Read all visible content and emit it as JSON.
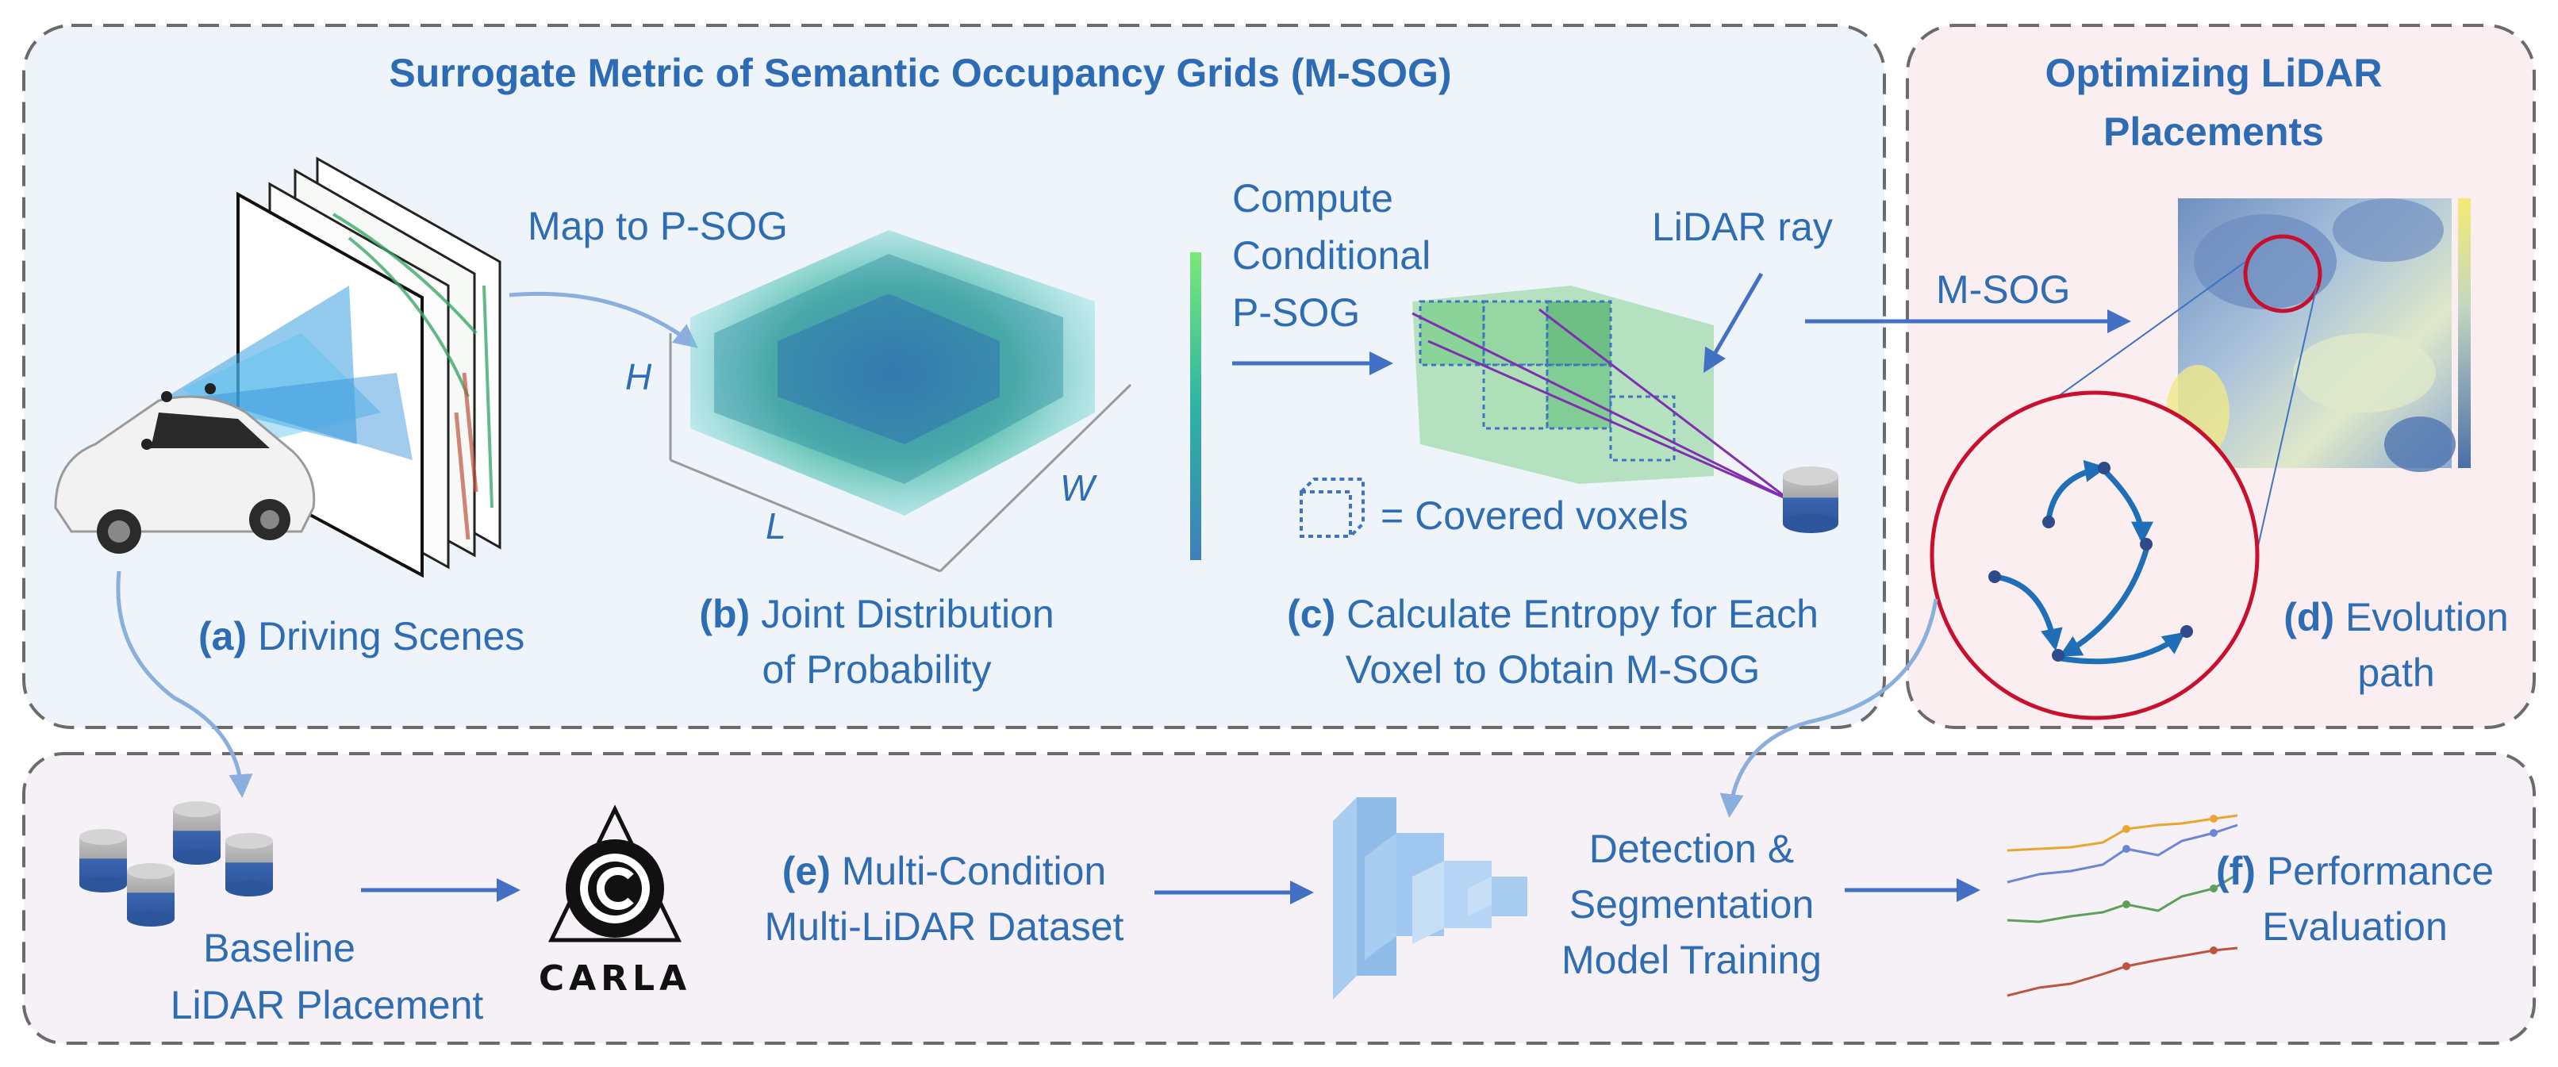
{
  "colors": {
    "accent": "#2e6db4",
    "panel_msog_bg": "#eef4fa",
    "panel_opt_bg": "#fbeef0",
    "panel_bottom_bg": "#f6f1f6",
    "dash_border": "#6b6b6b",
    "highlight_circle": "#c8102e"
  },
  "msog_panel": {
    "title": "Surrogate Metric of Semantic Occupancy Grids (M-SOG)",
    "map_label": "Map to P-SOG",
    "axis_h": "H",
    "axis_l": "L",
    "axis_w": "W",
    "conditional_line1": "Compute",
    "conditional_line2": "Conditional",
    "conditional_line3": "P-SOG",
    "lidar_ray": "LiDAR ray",
    "covered_voxels": "= Covered voxels",
    "caption_a_tag": "(a)",
    "caption_a_text": "Driving Scenes",
    "caption_b_tag": "(b)",
    "caption_b_text1": "Joint Distribution",
    "caption_b_text2": "of Probability",
    "caption_c_tag": "(c)",
    "caption_c_text1": "Calculate Entropy for Each",
    "caption_c_text2": "Voxel to Obtain M-SOG"
  },
  "opt_panel": {
    "title_line1": "Optimizing LiDAR",
    "title_line2": "Placements",
    "msog_label": "M-SOG",
    "caption_d_tag": "(d)",
    "caption_d_text1": "Evolution",
    "caption_d_text2": "path"
  },
  "bottom_panel": {
    "baseline_line1": "Baseline",
    "baseline_line2": "LiDAR Placement",
    "carla_wordmark": "CARLA",
    "caption_e_tag": "(e)",
    "caption_e_text1": "Multi-Condition",
    "caption_e_text2": "Multi-LiDAR Dataset",
    "train_line1": "Detection &",
    "train_line2": "Segmentation",
    "train_line3": "Model Training",
    "caption_f_tag": "(f)",
    "caption_f_text1": "Performance",
    "caption_f_text2": "Evaluation"
  }
}
